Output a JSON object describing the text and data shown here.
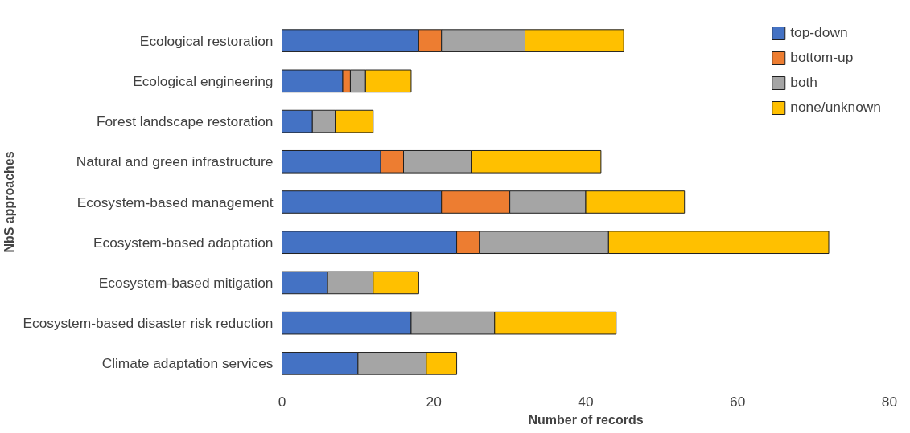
{
  "chart_data": {
    "type": "bar",
    "orientation": "horizontal",
    "stacked": true,
    "xlabel": "Number of records",
    "ylabel": "NbS approaches",
    "categories": [
      "Ecological restoration",
      "Ecological engineering",
      "Forest landscape restoration",
      "Natural and green infrastructure",
      "Ecosystem-based management",
      "Ecosystem-based adaptation",
      "Ecosystem-based mitigation",
      "Ecosystem-based disaster risk reduction",
      "Climate adaptation services"
    ],
    "series": [
      {
        "name": "top-down",
        "color": "#4472c4",
        "values": [
          18,
          8,
          4,
          13,
          21,
          23,
          6,
          17,
          10
        ]
      },
      {
        "name": "bottom-up",
        "color": "#ed7d31",
        "values": [
          3,
          1,
          0,
          3,
          9,
          3,
          0,
          0,
          0
        ]
      },
      {
        "name": "both",
        "color": "#a5a5a5",
        "values": [
          11,
          2,
          3,
          9,
          10,
          17,
          6,
          11,
          9
        ]
      },
      {
        "name": "none/unknown",
        "color": "#ffc000",
        "values": [
          13,
          6,
          5,
          17,
          13,
          29,
          6,
          16,
          4
        ]
      }
    ],
    "xlim": [
      0,
      80
    ],
    "xticks": [
      0,
      20,
      40,
      60,
      80
    ],
    "grid": false,
    "legend": "top right"
  }
}
